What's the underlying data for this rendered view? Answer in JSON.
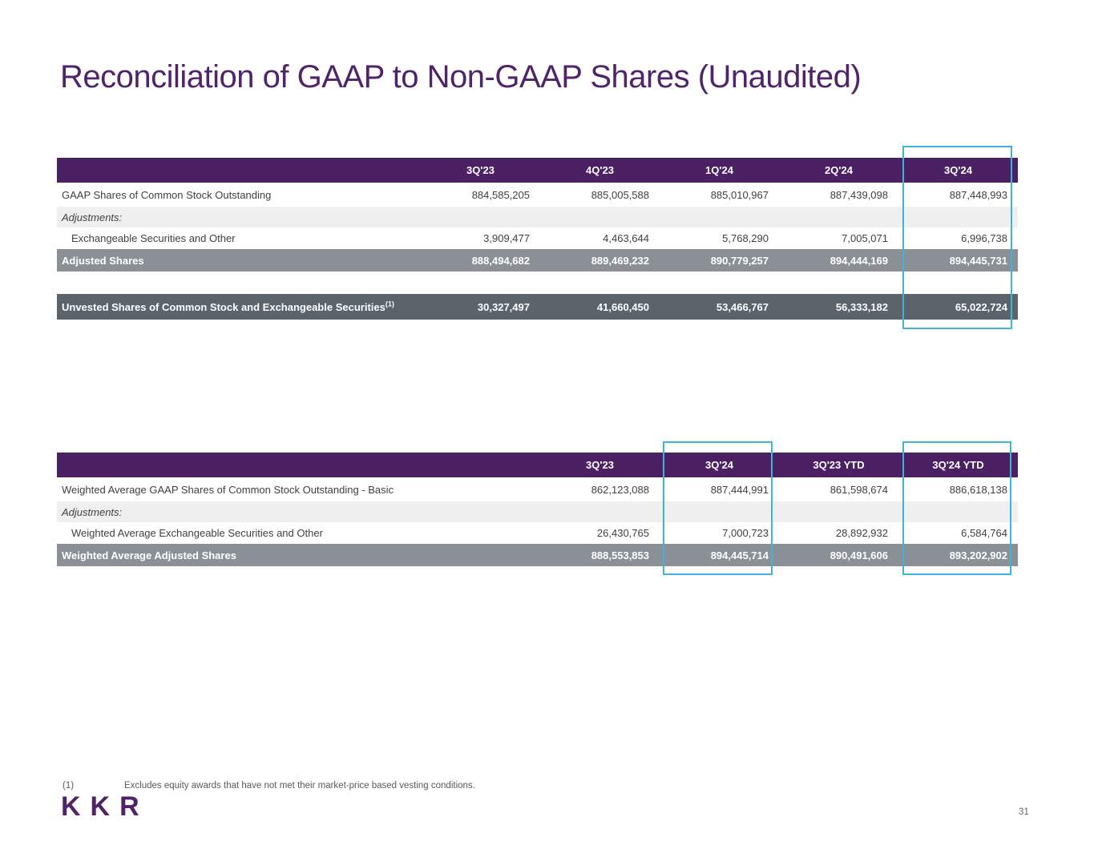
{
  "title": "Reconciliation of GAAP to Non-GAAP Shares (Unaudited)",
  "t1": {
    "headers": [
      "3Q'23",
      "4Q'23",
      "1Q'24",
      "2Q'24",
      "3Q'24"
    ],
    "gaap": {
      "label": "GAAP Shares of Common Stock Outstanding",
      "values": [
        "884,585,205",
        "885,005,588",
        "885,010,967",
        "887,439,098",
        "887,448,993"
      ]
    },
    "adjustments_label": "Adjustments:",
    "exch": {
      "label": "Exchangeable Securities and Other",
      "values": [
        "3,909,477",
        "4,463,644",
        "5,768,290",
        "7,005,071",
        "6,996,738"
      ]
    },
    "adjusted": {
      "label": "Adjusted Shares",
      "values": [
        "888,494,682",
        "889,469,232",
        "890,779,257",
        "894,444,169",
        "894,445,731"
      ]
    },
    "unvested": {
      "label": "Unvested Shares of Common Stock and Exchangeable Securities",
      "sup": "(1)",
      "values": [
        "30,327,497",
        "41,660,450",
        "53,466,767",
        "56,333,182",
        "65,022,724"
      ]
    }
  },
  "t2": {
    "headers": [
      "3Q'23",
      "3Q'24",
      "3Q'23 YTD",
      "3Q'24 YTD"
    ],
    "basic": {
      "label": "Weighted Average GAAP Shares of Common Stock Outstanding - Basic",
      "values": [
        "862,123,088",
        "887,444,991",
        "861,598,674",
        "886,618,138"
      ]
    },
    "adjustments_label": "Adjustments:",
    "exch": {
      "label": "Weighted Average Exchangeable Securities and Other",
      "values": [
        "26,430,765",
        "7,000,723",
        "28,892,932",
        "6,584,764"
      ]
    },
    "adjusted": {
      "label": "Weighted Average Adjusted Shares",
      "values": [
        "888,553,853",
        "894,445,714",
        "890,491,606",
        "893,202,902"
      ]
    }
  },
  "footnote": {
    "marker": "(1)",
    "text": "Excludes equity awards that have not met their market-price based vesting conditions."
  },
  "logo_text": "KKR",
  "page_number": "31",
  "colors": {
    "purple": "#4B2163",
    "total_row_gray": "#8A9096",
    "dark_row_gray": "#5B636B",
    "adjustments_gray": "#EFEFEF",
    "highlight_teal": "#3FB4D8"
  }
}
